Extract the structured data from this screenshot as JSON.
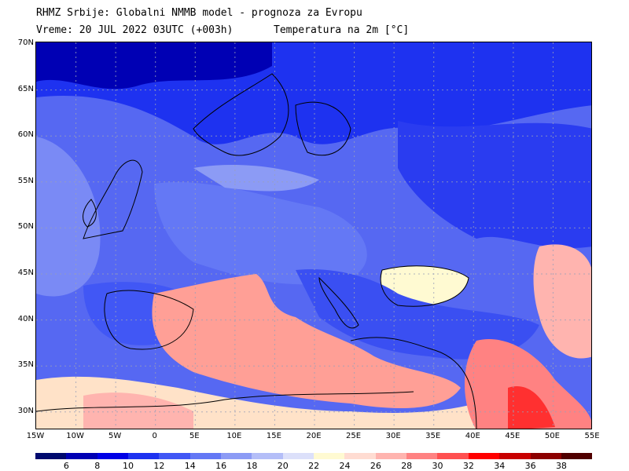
{
  "header": {
    "line1": "RHMZ Srbije: Globalni NMMB model - prognoza za Evropu",
    "line2": "Vreme: 20 JUL 2022 03UTC (+003h)",
    "line3": "Temperatura na 2m [°C]"
  },
  "axes": {
    "lat_labels": [
      "70N",
      "65N",
      "60N",
      "55N",
      "50N",
      "45N",
      "40N",
      "35N",
      "30N"
    ],
    "lon_labels": [
      "15W",
      "10W",
      "5W",
      "0",
      "5E",
      "10E",
      "15E",
      "20E",
      "25E",
      "30E",
      "35E",
      "40E",
      "45E",
      "50E",
      "55E"
    ]
  },
  "colorbar": {
    "labels": [
      "6",
      "8",
      "10",
      "12",
      "14",
      "16",
      "18",
      "20",
      "22",
      "24",
      "26",
      "28",
      "30",
      "32",
      "34",
      "36",
      "38"
    ],
    "colors": [
      "#000a6e",
      "#0000b4",
      "#0000e6",
      "#1e32f0",
      "#4157f5",
      "#6478f5",
      "#8c9bf5",
      "#b4bef8",
      "#dce0fa",
      "#fffad2",
      "#ffdcd2",
      "#ffb4af",
      "#ff8282",
      "#ff5050",
      "#ff0000",
      "#c80000",
      "#8c0000",
      "#500000"
    ]
  },
  "legend_colors": {
    "ocean_warm": "#ff9f96",
    "land_cool": "#6478f5",
    "land_cold": "#1e32f0"
  }
}
